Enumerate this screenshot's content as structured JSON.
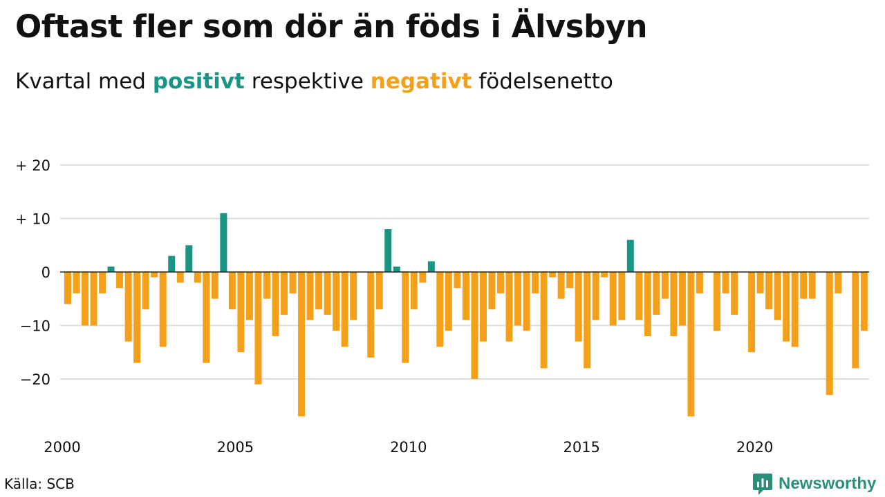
{
  "title": "Oftast fler som dör än föds i Älvsbyn",
  "subtitle": {
    "before": "Kvartal med",
    "positive": "positivt",
    "middle": "respektive",
    "negative": "negativt",
    "after": "födelsenetto"
  },
  "source": "Källa: SCB",
  "brand": {
    "name": "Newsworthy",
    "icon": "newsworthy-logo-icon"
  },
  "colors": {
    "positive": "#1a9485",
    "negative": "#f5a01b",
    "grid": "#dddddd",
    "baseline": "#222222"
  },
  "chart_data": {
    "type": "bar",
    "x_start": 2000.0,
    "x_step": 0.25,
    "values": [
      -6,
      -4,
      -10,
      -10,
      -4,
      1,
      -3,
      -13,
      -17,
      -7,
      -1,
      -14,
      3,
      -2,
      5,
      -2,
      -17,
      -5,
      11,
      -7,
      -15,
      -9,
      -21,
      -5,
      -12,
      -8,
      -4,
      -27,
      -9,
      -7,
      -8,
      -11,
      -14,
      -9,
      0,
      -16,
      -7,
      8,
      1,
      -17,
      -7,
      -2,
      2,
      -14,
      -11,
      -3,
      -9,
      -20,
      -13,
      -7,
      -4,
      -13,
      -10,
      -11,
      -4,
      -18,
      -1,
      -5,
      -3,
      -13,
      -18,
      -9,
      -1,
      -10,
      -9,
      6,
      -9,
      -12,
      -8,
      -5,
      -12,
      -10,
      -27,
      -4,
      0,
      -11,
      -4,
      -8,
      0,
      -15,
      -4,
      -7,
      -9,
      -13,
      -14,
      -5,
      -5,
      0,
      -23,
      -4,
      0,
      -18,
      -11
    ],
    "ylim": [
      -27,
      20
    ],
    "xlim": [
      2000,
      2023.25
    ],
    "yticks": [
      20,
      10,
      0,
      -10,
      -20
    ],
    "ytick_labels": [
      "+ 20",
      "+ 10",
      "0",
      "−10",
      "−20"
    ],
    "xticks": [
      2000,
      2005,
      2010,
      2015,
      2020
    ],
    "xtick_labels": [
      "2000",
      "2005",
      "2010",
      "2015",
      "2020"
    ],
    "grid": true
  }
}
